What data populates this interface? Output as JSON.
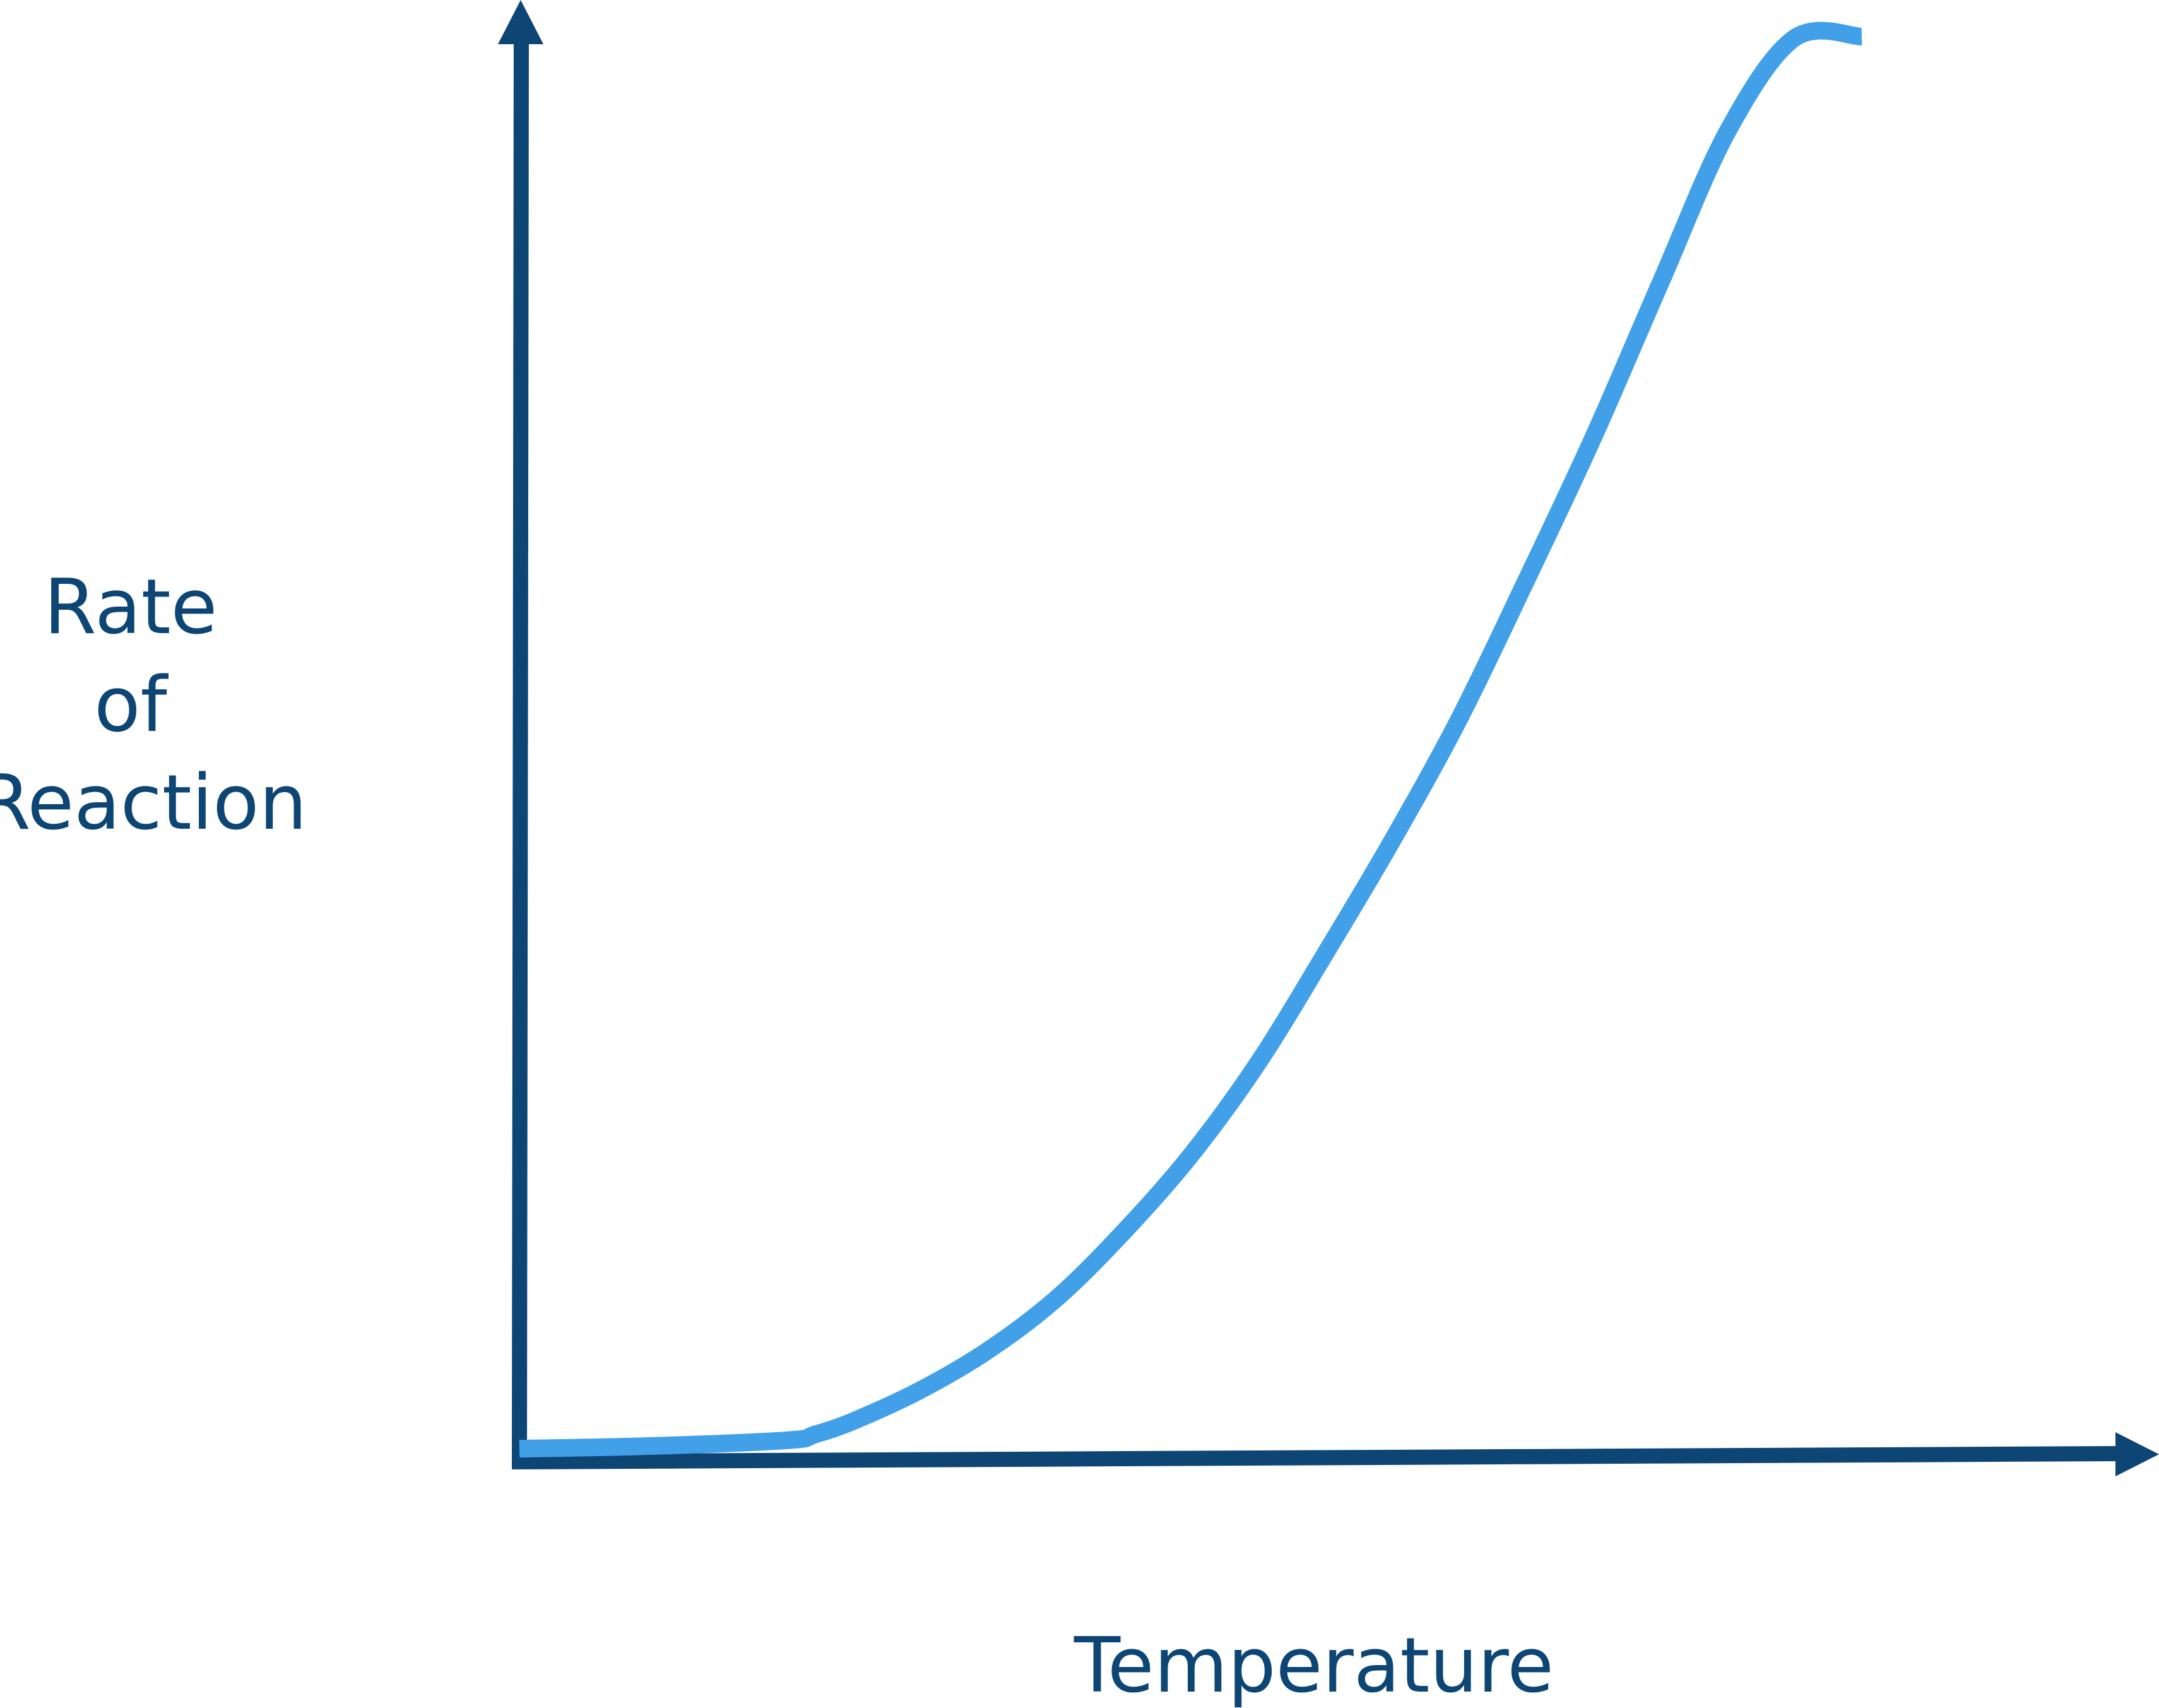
{
  "colors": {
    "axis": "#0d4575",
    "curve": "#41a0e8",
    "background": "#ffffff"
  },
  "chart_data": {
    "type": "line",
    "title": "",
    "xlabel": "Temperature",
    "ylabel_lines": [
      "Rate",
      "of",
      "Reaction"
    ],
    "grid": false,
    "axis_ticks": false,
    "xlim": [
      0,
      100
    ],
    "ylim": [
      0,
      100
    ],
    "series": [
      {
        "x": [
          0,
          10,
          20,
          22,
          25,
          30,
          35,
          40,
          45,
          50,
          55,
          60,
          65,
          70,
          75,
          80,
          85,
          90,
          95,
          100
        ],
        "y": [
          0.3,
          0.5,
          0.9,
          1.3,
          2.3,
          4.5,
          7.3,
          10.9,
          15.6,
          21.0,
          27.5,
          35.2,
          43.2,
          51.8,
          61.6,
          71.7,
          82.6,
          93.3,
          99.9,
          100
        ]
      }
    ]
  }
}
